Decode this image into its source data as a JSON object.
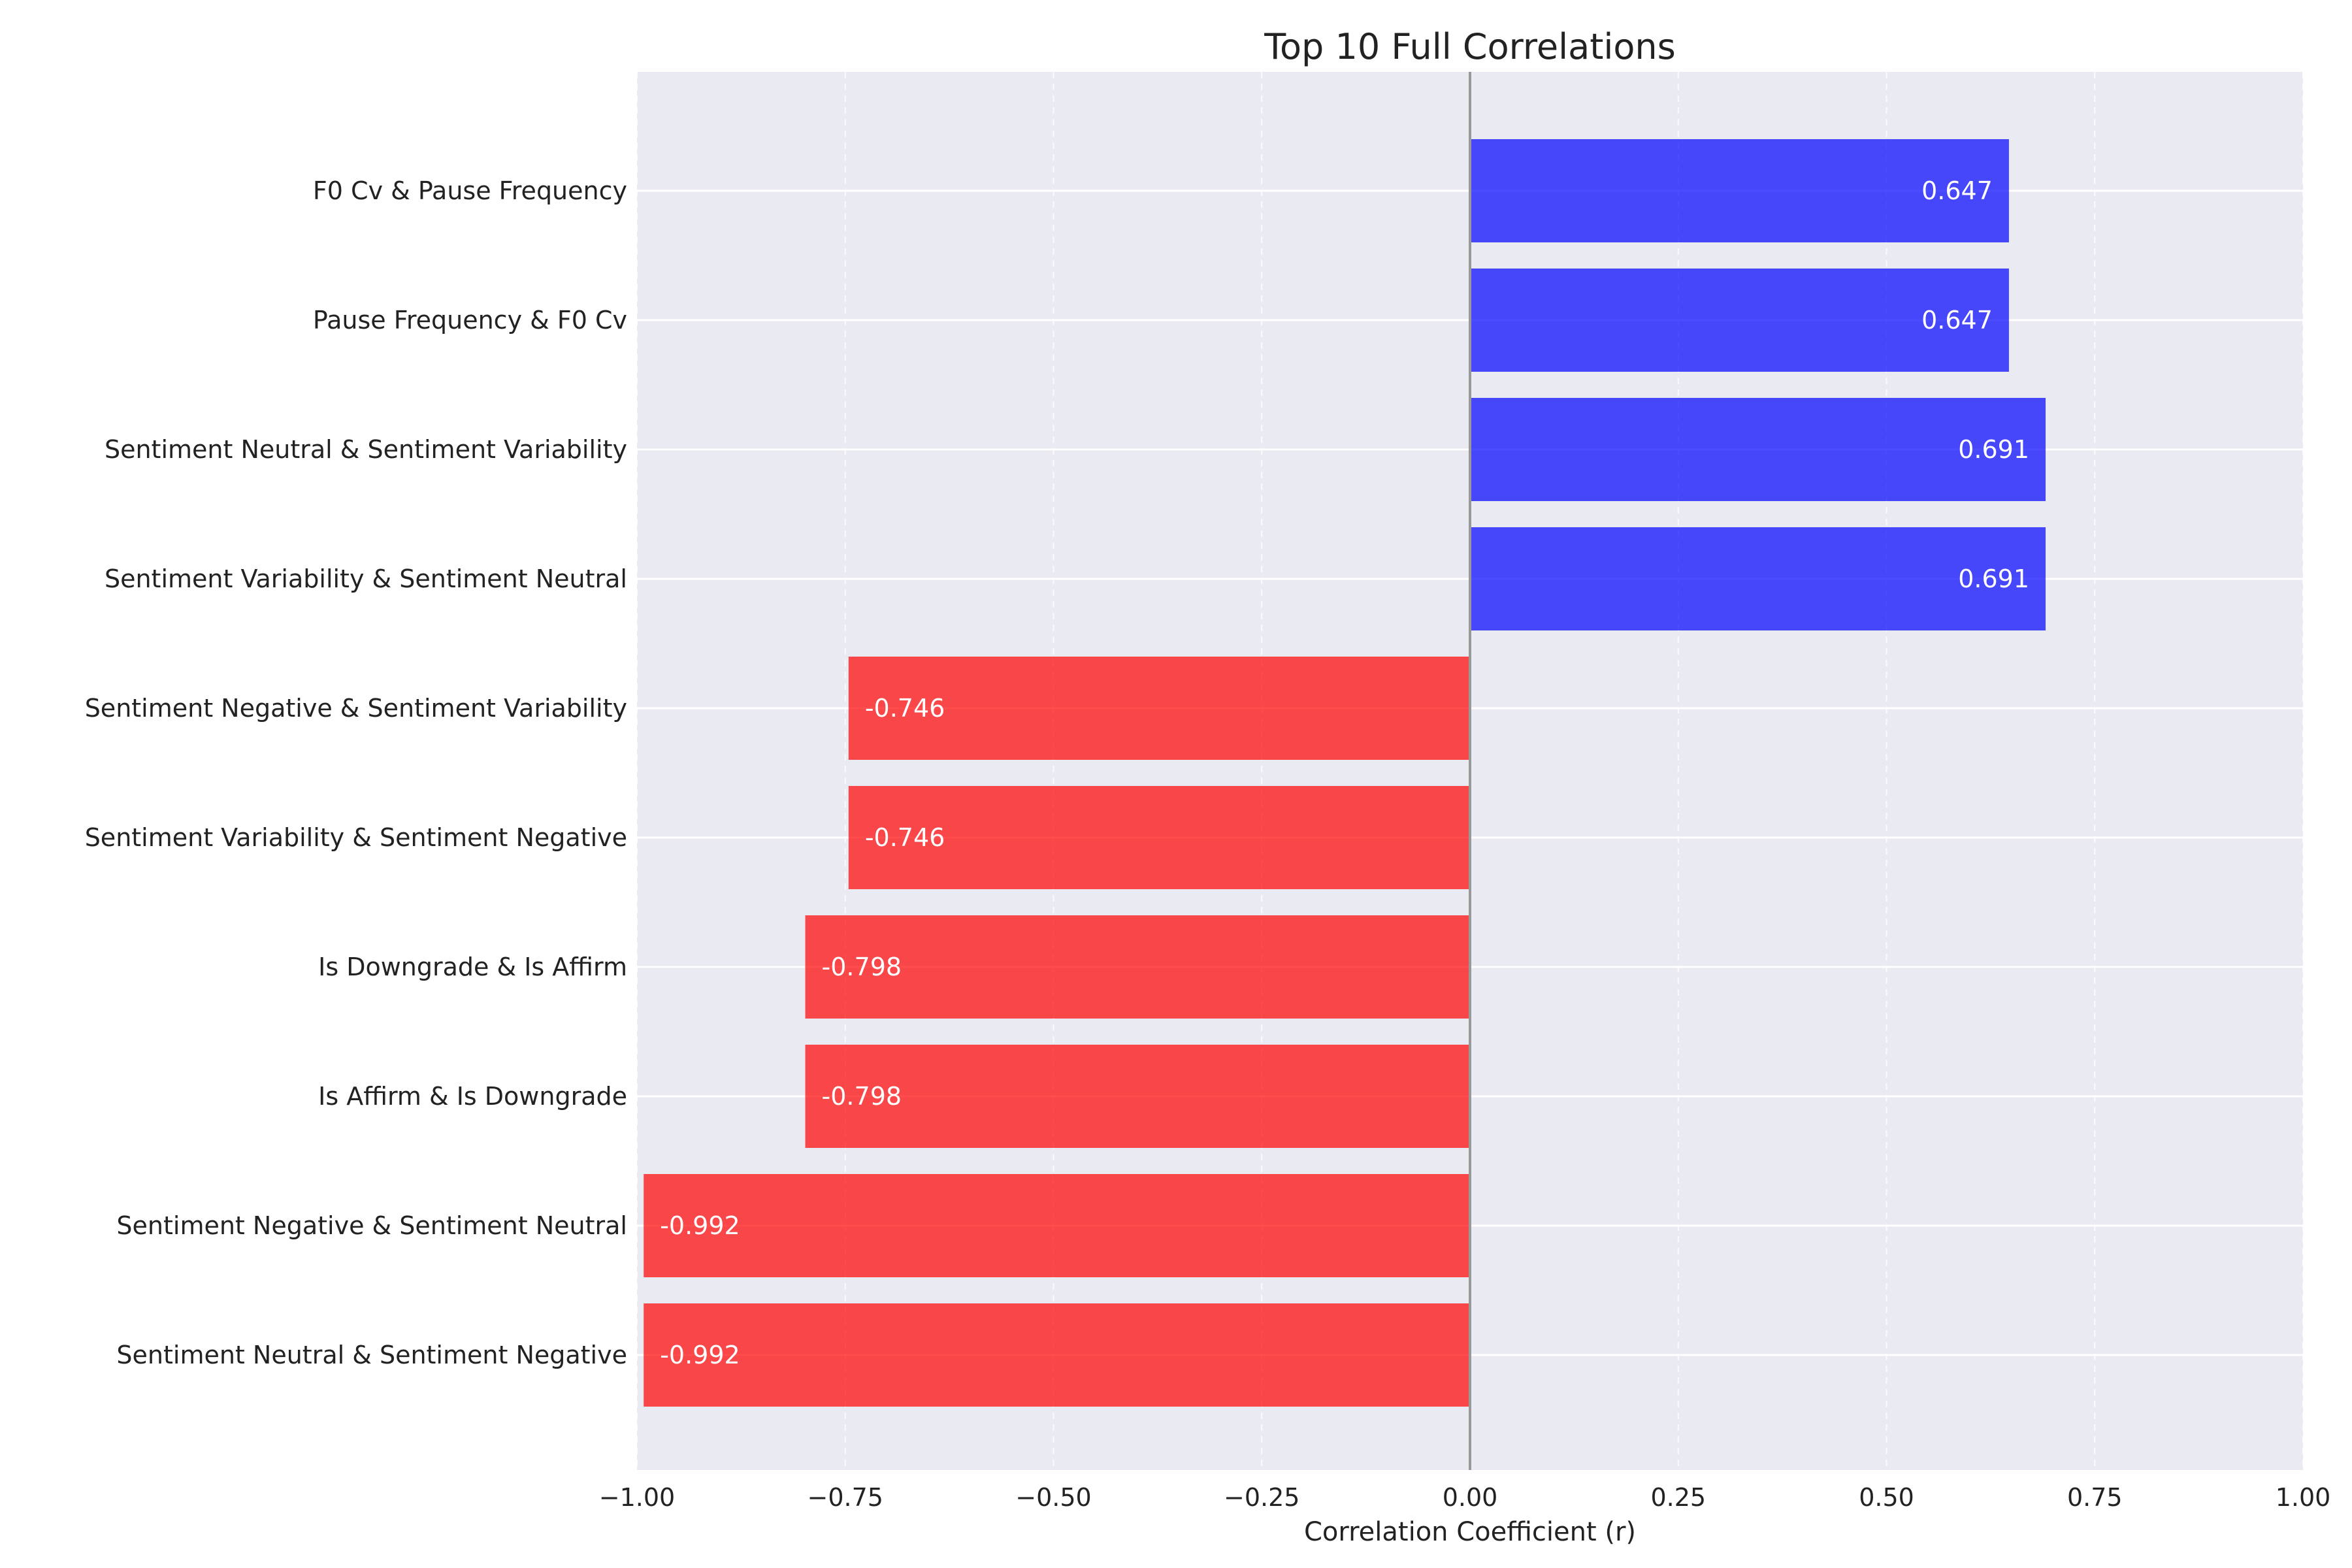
{
  "chart_data": {
    "type": "bar",
    "orientation": "horizontal",
    "title": "Top 10 Full Correlations",
    "xlabel": "Correlation Coefficient (r)",
    "ylabel": "",
    "xlim": [
      -1.0,
      1.0
    ],
    "xticks": [
      -1.0,
      -0.75,
      -0.5,
      -0.25,
      0.0,
      0.25,
      0.5,
      0.75,
      1.0
    ],
    "xtick_labels": [
      "−1.00",
      "−0.75",
      "−0.50",
      "−0.25",
      "0.00",
      "0.25",
      "0.50",
      "0.75",
      "1.00"
    ],
    "grid": true,
    "colors": {
      "positive": "#0000ff",
      "negative": "#ff0000",
      "background": "#eaeaf2",
      "zero_line": "#999999"
    },
    "categories": [
      "F0 Cv & Pause Frequency",
      "Pause Frequency & F0 Cv",
      "Sentiment Neutral & Sentiment Variability",
      "Sentiment Variability & Sentiment Neutral",
      "Sentiment Negative & Sentiment Variability",
      "Sentiment Variability & Sentiment Negative",
      "Is Downgrade & Is Affirm",
      "Is Affirm & Is Downgrade",
      "Sentiment Negative & Sentiment Neutral",
      "Sentiment Neutral & Sentiment Negative"
    ],
    "values": [
      0.647,
      0.647,
      0.691,
      0.691,
      -0.746,
      -0.746,
      -0.798,
      -0.798,
      -0.992,
      -0.992
    ],
    "value_labels": [
      "0.647",
      "0.647",
      "0.691",
      "0.691",
      "-0.746",
      "-0.746",
      "-0.798",
      "-0.798",
      "-0.992",
      "-0.992"
    ]
  }
}
